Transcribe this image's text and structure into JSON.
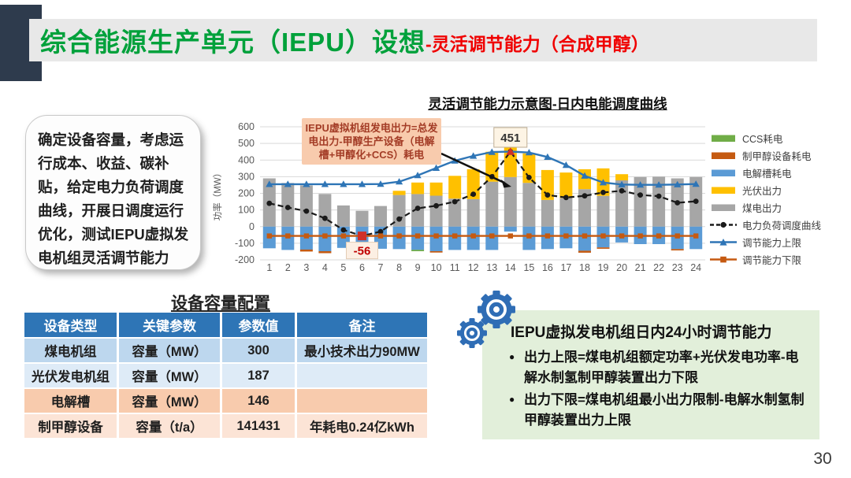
{
  "header": {
    "title_main": "综合能源生产单元（IEPU）设想",
    "title_sub": "-灵活调节能力（合成甲醇）",
    "title_main_color": "#00a13b",
    "title_sub_color": "#f00000",
    "accent_color": "#2e3b4d",
    "band_color": "#e8e8e8"
  },
  "left_note": {
    "text": "确定设备容量，考虑运行成本、收益、碳补贴，给定电力负荷调度曲线，开展日调度运行优化，测试IEPU虚拟发电机组灵活调节能力"
  },
  "chart_data": {
    "type": "bar",
    "title": "灵活调节能力示意图-日内电能调度曲线",
    "xlabel": "",
    "ylabel": "功率（MW）",
    "ylim": [
      -200,
      600
    ],
    "ytick_step": 100,
    "grid": true,
    "legend_position": "right",
    "x": [
      1,
      2,
      3,
      4,
      5,
      6,
      7,
      8,
      9,
      10,
      11,
      12,
      13,
      14,
      15,
      16,
      17,
      18,
      19,
      20,
      21,
      22,
      23,
      24
    ],
    "series": [
      {
        "name": "煤电出力",
        "kind": "bar-stack-pos",
        "color": "#a6a6a6",
        "values": [
          290,
          262,
          248,
          196,
          127,
          95,
          124,
          190,
          196,
          186,
          168,
          165,
          270,
          298,
          263,
          160,
          172,
          225,
          185,
          278,
          298,
          300,
          290,
          298
        ]
      },
      {
        "name": "光伏出力",
        "kind": "bar-stack-pos",
        "color": "#ffc000",
        "values": [
          0,
          0,
          0,
          0,
          0,
          0,
          0,
          25,
          69,
          79,
          137,
          180,
          180,
          192,
          177,
          180,
          153,
          120,
          165,
          37,
          0,
          0,
          0,
          0
        ]
      },
      {
        "name": "电解槽耗电",
        "kind": "bar-stack-neg",
        "color": "#5b9bd5",
        "values": [
          -130,
          -140,
          -138,
          -148,
          -128,
          -120,
          -133,
          -135,
          -140,
          -148,
          -140,
          -140,
          -140,
          -30,
          -140,
          -135,
          -130,
          -145,
          -125,
          -95,
          -105,
          -105,
          -135,
          -135
        ]
      },
      {
        "name": "制甲醇设备耗电",
        "kind": "bar-stack-neg",
        "color": "#c55a11",
        "values": [
          0,
          0,
          -12,
          -12,
          0,
          0,
          0,
          0,
          0,
          -8,
          0,
          0,
          0,
          0,
          0,
          0,
          0,
          -12,
          -8,
          0,
          0,
          0,
          -8,
          0
        ]
      },
      {
        "name": "CCS耗电",
        "kind": "bar-stack-neg",
        "color": "#70ad47",
        "values": [
          0,
          0,
          0,
          0,
          0,
          0,
          0,
          0,
          -8,
          0,
          0,
          0,
          0,
          0,
          0,
          0,
          0,
          0,
          0,
          0,
          0,
          0,
          0,
          0
        ]
      },
      {
        "name": "电力负荷调度曲线",
        "kind": "line-dashed",
        "color": "#1a1a1a",
        "marker": "circle",
        "values": [
          140,
          115,
          93,
          50,
          -20,
          -56,
          -30,
          45,
          110,
          125,
          150,
          195,
          300,
          451,
          295,
          190,
          175,
          185,
          205,
          215,
          190,
          183,
          143,
          152
        ]
      },
      {
        "name": "调节能力上限",
        "kind": "line",
        "color": "#2e75b6",
        "marker": "triangle",
        "values": [
          255,
          255,
          255,
          255,
          255,
          255,
          256,
          270,
          308,
          352,
          396,
          425,
          448,
          451,
          445,
          418,
          370,
          305,
          265,
          253,
          251,
          251,
          253,
          256
        ]
      },
      {
        "name": "调节能力下限",
        "kind": "line",
        "color": "#c55a11",
        "marker": "square",
        "values": [
          -56,
          -56,
          -56,
          -56,
          -56,
          -56,
          -56,
          -56,
          -56,
          -56,
          -56,
          -56,
          -56,
          -56,
          -56,
          -56,
          -56,
          -56,
          -56,
          -56,
          -56,
          -56,
          -56,
          -56
        ]
      }
    ],
    "legend": [
      {
        "label": "CCS耗电",
        "swatch": "bar",
        "color": "#70ad47"
      },
      {
        "label": "制甲醇设备耗电",
        "swatch": "bar",
        "color": "#c55a11"
      },
      {
        "label": "电解槽耗电",
        "swatch": "bar",
        "color": "#5b9bd5"
      },
      {
        "label": "光伏出力",
        "swatch": "bar",
        "color": "#ffc000"
      },
      {
        "label": "煤电出力",
        "swatch": "bar",
        "color": "#a6a6a6"
      },
      {
        "label": "电力负荷调度曲线",
        "swatch": "dashed-line-circle",
        "color": "#1a1a1a"
      },
      {
        "label": "调节能力上限",
        "swatch": "line-triangle",
        "color": "#2e75b6"
      },
      {
        "label": "调节能力下限",
        "swatch": "line-square",
        "color": "#c55a11"
      }
    ],
    "annotations": [
      {
        "text": "451",
        "x": 14,
        "y": 451,
        "style": "peak"
      },
      {
        "text": "-56",
        "x": 6,
        "y": -56,
        "style": "min"
      }
    ],
    "callout": {
      "text": "IEPU虚拟机组发电出力=总发电出力-甲醇生产设备（电解槽+甲醇化+CCS）耗电"
    }
  },
  "table": {
    "title": "设备容量配置",
    "header_bg": "#2e75b6",
    "headers": [
      "设备类型",
      "关键参数",
      "参数值",
      "备注"
    ],
    "rows": [
      {
        "cells": [
          "煤电机组",
          "容量（MW）",
          "300",
          "最小技术出力90MW"
        ],
        "bg": "#bdd7ee"
      },
      {
        "cells": [
          "光伏发电机组",
          "容量（MW）",
          "187",
          ""
        ],
        "bg": "#deebf7"
      },
      {
        "cells": [
          "电解槽",
          "容量（MW）",
          "146",
          ""
        ],
        "bg": "#f8cbad"
      },
      {
        "cells": [
          "制甲醇设备",
          "容量（t/a）",
          "141431",
          "年耗电0.24亿kWh"
        ],
        "bg": "#fce4d6"
      }
    ]
  },
  "right_panel": {
    "bg": "#e2efda",
    "icon": "gears-icon",
    "icon_color": "#2f6db5",
    "title": "IEPU虚拟发电机组日内24小时调节能力",
    "bullets": [
      "出力上限=煤电机组额定功率+光伏发电功率-电解水制氢制甲醇装置出力下限",
      "出力下限=煤电机组最小出力限制-电解水制氢制甲醇装置出力上限"
    ]
  },
  "page_number": "30"
}
